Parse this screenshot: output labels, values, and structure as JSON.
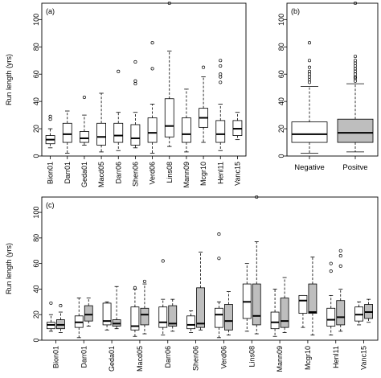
{
  "chart_data": [
    {
      "type": "boxplot",
      "panel_label": "(a)",
      "ylabel": "Run length (yrs)",
      "ylim": [
        0,
        112
      ],
      "yticks": [
        0,
        20,
        40,
        60,
        80,
        100
      ],
      "categories": [
        "Bion01",
        "Darr01",
        "Geda01",
        "Macd05",
        "Darr06",
        "Shen06",
        "Verd06",
        "Lins08",
        "Mann09",
        "Mcgr10",
        "Henl11",
        "Vanc15"
      ],
      "boxes": [
        {
          "min": 6,
          "q1": 9,
          "median": 12,
          "q3": 15,
          "max": 20,
          "outliers": [
            27,
            29
          ]
        },
        {
          "min": 2,
          "q1": 10,
          "median": 16,
          "q3": 24,
          "max": 33,
          "outliers": []
        },
        {
          "min": 8,
          "q1": 10,
          "median": 13,
          "q3": 18,
          "max": 30,
          "outliers": [
            43
          ]
        },
        {
          "min": 3,
          "q1": 8,
          "median": 14,
          "q3": 24,
          "max": 46,
          "outliers": []
        },
        {
          "min": 4,
          "q1": 10,
          "median": 15,
          "q3": 24,
          "max": 32,
          "outliers": [
            62
          ]
        },
        {
          "min": 6,
          "q1": 8,
          "median": 13,
          "q3": 23,
          "max": 32,
          "outliers": [
            53,
            55,
            69
          ]
        },
        {
          "min": 2,
          "q1": 10,
          "median": 17,
          "q3": 28,
          "max": 38,
          "outliers": [
            64,
            83
          ]
        },
        {
          "min": 7,
          "q1": 14,
          "median": 22,
          "q3": 42,
          "max": 77,
          "outliers": [
            112
          ]
        },
        {
          "min": 3,
          "q1": 10,
          "median": 16,
          "q3": 28,
          "max": 49,
          "outliers": []
        },
        {
          "min": 10,
          "q1": 21,
          "median": 28,
          "q3": 35,
          "max": 58,
          "outliers": [
            65
          ]
        },
        {
          "min": 4,
          "q1": 10,
          "median": 16,
          "q3": 26,
          "max": 38,
          "outliers": [
            54,
            58,
            60,
            66,
            70
          ]
        },
        {
          "min": 12,
          "q1": 15,
          "median": 20,
          "q3": 26,
          "max": 32,
          "outliers": []
        }
      ]
    },
    {
      "type": "boxplot",
      "panel_label": "(b)",
      "ylim": [
        0,
        112
      ],
      "yticks": [
        0,
        20,
        40,
        60,
        80,
        100
      ],
      "categories": [
        "Negative",
        "Positve"
      ],
      "boxes": [
        {
          "min": 2,
          "q1": 10,
          "median": 16,
          "q3": 25,
          "max": 51,
          "outliers": [
            54,
            56,
            58,
            60,
            62,
            65,
            70,
            83
          ],
          "fill": "#ffffff"
        },
        {
          "min": 3,
          "q1": 10,
          "median": 17,
          "q3": 27,
          "max": 53,
          "outliers": [
            55,
            57,
            58,
            60,
            62,
            64,
            66,
            68,
            70,
            73,
            112
          ],
          "fill": "#bebebe"
        }
      ]
    },
    {
      "type": "boxplot",
      "panel_label": "(c)",
      "ylabel": "Run length (yrs)",
      "ylim": [
        0,
        112
      ],
      "yticks": [
        0,
        20,
        40,
        60,
        80,
        100
      ],
      "categories": [
        "Bion01",
        "Darr01",
        "Geda01",
        "Macd05",
        "Darr06",
        "Shen06",
        "Verd06",
        "Lins08",
        "Mann09",
        "Mcgr10",
        "Henl11",
        "Vanc15"
      ],
      "pairs": [
        [
          {
            "min": 7,
            "q1": 9,
            "median": 12,
            "q3": 14,
            "max": 20,
            "outliers": [
              29
            ]
          },
          {
            "min": 6,
            "q1": 9,
            "median": 12,
            "q3": 16,
            "max": 22,
            "outliers": [
              27
            ]
          }
        ],
        [
          {
            "min": 2,
            "q1": 10,
            "median": 14,
            "q3": 19,
            "max": 33,
            "outliers": []
          },
          {
            "min": 11,
            "q1": 15,
            "median": 20,
            "q3": 27,
            "max": 33,
            "outliers": []
          }
        ],
        [
          {
            "min": 8,
            "q1": 12,
            "median": 15,
            "q3": 29,
            "max": 30,
            "outliers": []
          },
          {
            "min": 9,
            "q1": 11,
            "median": 13,
            "q3": 16,
            "max": 42,
            "outliers": []
          }
        ],
        [
          {
            "min": 3,
            "q1": 8,
            "median": 11,
            "q3": 26,
            "max": 40,
            "outliers": [
              41
            ]
          },
          {
            "min": 5,
            "q1": 12,
            "median": 20,
            "q3": 25,
            "max": 44,
            "outliers": [
              46
            ]
          }
        ],
        [
          {
            "min": 4,
            "q1": 10,
            "median": 14,
            "q3": 26,
            "max": 32,
            "outliers": [
              62
            ]
          },
          {
            "min": 7,
            "q1": 11,
            "median": 13,
            "q3": 27,
            "max": 32,
            "outliers": []
          }
        ],
        [
          {
            "min": 6,
            "q1": 9,
            "median": 12,
            "q3": 19,
            "max": 23,
            "outliers": []
          },
          {
            "min": 8,
            "q1": 10,
            "median": 13,
            "q3": 41,
            "max": 69,
            "outliers": []
          }
        ],
        [
          {
            "min": 2,
            "q1": 10,
            "median": 20,
            "q3": 25,
            "max": 30,
            "outliers": [
              64,
              83
            ]
          },
          {
            "min": 4,
            "q1": 8,
            "median": 15,
            "q3": 28,
            "max": 38,
            "outliers": []
          }
        ],
        [
          {
            "min": 7,
            "q1": 17,
            "median": 30,
            "q3": 44,
            "max": 60,
            "outliers": []
          },
          {
            "min": 5,
            "q1": 12,
            "median": 19,
            "q3": 44,
            "max": 77,
            "outliers": [
              112
            ]
          }
        ],
        [
          {
            "min": 3,
            "q1": 9,
            "median": 14,
            "q3": 22,
            "max": 40,
            "outliers": []
          },
          {
            "min": 6,
            "q1": 10,
            "median": 15,
            "q3": 33,
            "max": 49,
            "outliers": []
          }
        ],
        [
          {
            "min": 10,
            "q1": 21,
            "median": 31,
            "q3": 35,
            "max": 35,
            "outliers": []
          },
          {
            "min": 4,
            "q1": 21,
            "median": 22,
            "q3": 44,
            "max": 65,
            "outliers": []
          }
        ],
        [
          {
            "min": 4,
            "q1": 11,
            "median": 16,
            "q3": 25,
            "max": 35,
            "outliers": [
              54,
              60
            ]
          },
          {
            "min": 7,
            "q1": 12,
            "median": 18,
            "q3": 31,
            "max": 40,
            "outliers": [
              58,
              66,
              70
            ]
          }
        ],
        [
          {
            "min": 12,
            "q1": 15,
            "median": 20,
            "q3": 26,
            "max": 30,
            "outliers": []
          },
          {
            "min": 14,
            "q1": 17,
            "median": 22,
            "q3": 28,
            "max": 32,
            "outliers": []
          }
        ]
      ]
    }
  ]
}
